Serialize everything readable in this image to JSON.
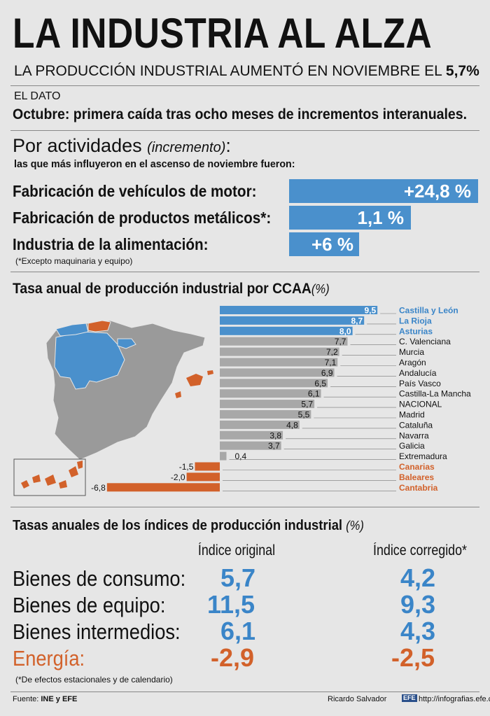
{
  "title": "LA INDUSTRIA AL ALZA",
  "subtitle": {
    "text": "LA PRODUCCIÓN INDUSTRIAL AUMENTÓ EN NOVIEMBRE EL",
    "value": "5,7%"
  },
  "dato": {
    "label": "EL DATO",
    "text": "Octubre: primera caída tras ocho meses de incrementos interanuales."
  },
  "actividades": {
    "title": "Por actividades",
    "title_italic": "(incremento)",
    "title_colon": ":",
    "subtitle": "las que más influyeron en el ascenso de noviembre fueron:",
    "items": [
      {
        "label": "Fabricación de vehículos de motor:",
        "value_label": "+24,8 %",
        "value": 24.8
      },
      {
        "label": "Fabricación de productos metálicos*:",
        "value_label": "1,1 %",
        "value": 1.1
      },
      {
        "label": "Industria de la alimentación:",
        "value_label": "+6 %",
        "value": 6
      }
    ],
    "note": "(*Excepto maquinaria y equipo)"
  },
  "ccaa": {
    "title": "Tasa anual de producción industrial por CCAA",
    "title_unit": "(%)"
  },
  "chart_data": {
    "type": "bar",
    "orientation": "horizontal",
    "title": "Tasa anual de producción industrial por CCAA (%)",
    "categories": [
      "Castilla y León",
      "La Rioja",
      "Asturias",
      "C. Valenciana",
      "Murcia",
      "Aragón",
      "Andalucía",
      "País Vasco",
      "Castilla-La Mancha",
      "NACIONAL",
      "Madrid",
      "Cataluña",
      "Navarra",
      "Galicia",
      "Extremadura",
      "Canarias",
      "Baleares",
      "Cantabria"
    ],
    "values": [
      9.5,
      8.7,
      8.0,
      7.7,
      7.2,
      7.1,
      6.9,
      6.5,
      6.1,
      5.7,
      5.5,
      4.8,
      3.8,
      3.7,
      0.4,
      -1.5,
      -2.0,
      -6.8
    ],
    "value_labels": [
      "9,5",
      "8,7",
      "8,0",
      "7,7",
      "7,2",
      "7,1",
      "6,9",
      "6,5",
      "6,1",
      "5,7",
      "5,5",
      "4,8",
      "3,8",
      "3,7",
      "0,4",
      "-1,5",
      "-2,0",
      "-6,8"
    ],
    "highlight": [
      "top",
      "top",
      "top",
      "none",
      "none",
      "none",
      "none",
      "none",
      "none",
      "none",
      "none",
      "none",
      "none",
      "none",
      "none",
      "negative",
      "negative",
      "negative"
    ],
    "colors": {
      "top": "#4a90cc",
      "none": "#a8a8a8",
      "negative": "#d2612a",
      "map_grey": "#9a9a9a"
    },
    "xlim": [
      -6.8,
      9.5
    ]
  },
  "tasas": {
    "title": "Tasas anuales de los índices de producción industrial",
    "title_unit": "(%)",
    "col_original": "Índice original",
    "col_corregido": "Índice corregido*",
    "rows": [
      {
        "label": "Bienes de consumo:",
        "original": "5,7",
        "corregido": "4,2"
      },
      {
        "label": "Bienes de equipo:",
        "original": "11,5",
        "corregido": "9,3"
      },
      {
        "label": "Bienes intermedios:",
        "original": "6,1",
        "corregido": "4,3"
      },
      {
        "label": "Energía:",
        "original": "-2,9",
        "corregido": "-2,5"
      }
    ],
    "note": "(*De efectos estacionales y de calendario)"
  },
  "footer": {
    "fuente_label": "Fuente:",
    "fuente": "INE y EFE",
    "author": "Ricardo Salvador",
    "logo": "EFE",
    "url": "http://infografias.efe.com"
  }
}
